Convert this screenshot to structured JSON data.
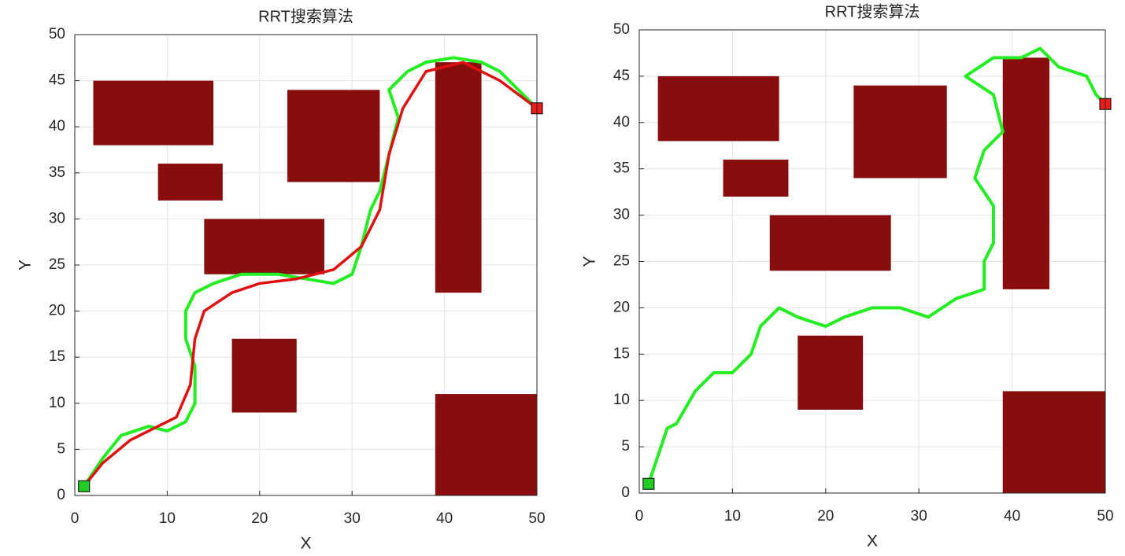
{
  "chart_data": [
    {
      "type": "line",
      "title": "RRT搜索算法",
      "xlabel": "X",
      "ylabel": "Y",
      "xlim": [
        0,
        50
      ],
      "ylim": [
        0,
        50
      ],
      "xticks": [
        0,
        10,
        20,
        30,
        40,
        50
      ],
      "yticks": [
        0,
        5,
        10,
        15,
        20,
        25,
        30,
        35,
        40,
        45,
        50
      ],
      "grid": true,
      "obstacle_color": "#880e0e",
      "obstacles": [
        {
          "x": 2,
          "y": 38,
          "width": 13,
          "height": 7
        },
        {
          "x": 9,
          "y": 32,
          "width": 7,
          "height": 4
        },
        {
          "x": 14,
          "y": 24,
          "width": 13,
          "height": 6
        },
        {
          "x": 23,
          "y": 34,
          "width": 10,
          "height": 10
        },
        {
          "x": 39,
          "y": 22,
          "width": 5,
          "height": 25
        },
        {
          "x": 17,
          "y": 9,
          "width": 7,
          "height": 8
        },
        {
          "x": 39,
          "y": 0,
          "width": 11,
          "height": 11
        }
      ],
      "series": [
        {
          "color": "#22ee22",
          "x": [
            1,
            3,
            5,
            8,
            10,
            12,
            13,
            13,
            12,
            12,
            13,
            15,
            18,
            22,
            25,
            28,
            30,
            31,
            32,
            33,
            34,
            35,
            34,
            36,
            38,
            41,
            44,
            46,
            48,
            50
          ],
          "values": [
            1,
            4,
            6.5,
            7.5,
            7,
            8,
            10,
            14,
            17,
            20,
            22,
            23,
            24,
            24,
            23.5,
            23,
            24,
            27,
            31,
            33,
            37,
            41,
            44,
            46,
            47,
            47.5,
            47,
            46,
            44,
            42
          ]
        },
        {
          "color": "#e01010",
          "x": [
            1,
            3,
            6,
            9,
            11,
            12.5,
            13,
            14,
            17,
            20,
            24,
            28,
            31,
            33,
            34,
            35.5,
            38,
            42,
            46,
            50
          ],
          "values": [
            1,
            3.5,
            6,
            7.5,
            8.5,
            12,
            17,
            20,
            22,
            23,
            23.5,
            24.5,
            27,
            31,
            37,
            42,
            46,
            47,
            45,
            42
          ]
        }
      ],
      "markers": [
        {
          "x": 1,
          "y": 1,
          "color": "#22cc22"
        },
        {
          "x": 50,
          "y": 42,
          "color": "#ee1c1c"
        }
      ]
    },
    {
      "type": "line",
      "title": "RRT搜索算法",
      "xlabel": "X",
      "ylabel": "Y",
      "xlim": [
        0,
        50
      ],
      "ylim": [
        0,
        50
      ],
      "xticks": [
        0,
        10,
        20,
        30,
        40,
        50
      ],
      "yticks": [
        0,
        5,
        10,
        15,
        20,
        25,
        30,
        35,
        40,
        45,
        50
      ],
      "grid": true,
      "obstacle_color": "#880e0e",
      "obstacles": [
        {
          "x": 2,
          "y": 38,
          "width": 13,
          "height": 7
        },
        {
          "x": 9,
          "y": 32,
          "width": 7,
          "height": 4
        },
        {
          "x": 14,
          "y": 24,
          "width": 13,
          "height": 6
        },
        {
          "x": 23,
          "y": 34,
          "width": 10,
          "height": 10
        },
        {
          "x": 39,
          "y": 22,
          "width": 5,
          "height": 25
        },
        {
          "x": 17,
          "y": 9,
          "width": 7,
          "height": 8
        },
        {
          "x": 39,
          "y": 0,
          "width": 11,
          "height": 11
        }
      ],
      "series": [
        {
          "color": "#22ee22",
          "x": [
            1,
            2,
            3,
            4,
            6,
            8,
            10,
            12,
            13,
            15,
            17,
            20,
            22,
            25,
            28,
            31,
            34,
            37,
            37,
            38,
            38,
            36,
            37,
            39,
            38,
            35,
            38,
            41,
            43,
            45,
            48,
            49,
            50
          ],
          "values": [
            1,
            4,
            7,
            7.5,
            11,
            13,
            13,
            15,
            18,
            20,
            19,
            18,
            19,
            20,
            20,
            19,
            21,
            22,
            25,
            27,
            31,
            34,
            37,
            39,
            43,
            45,
            47,
            47,
            48,
            46,
            45,
            43,
            42
          ]
        }
      ],
      "markers": [
        {
          "x": 1,
          "y": 1,
          "color": "#22cc22"
        },
        {
          "x": 50,
          "y": 42,
          "color": "#ee1c1c"
        }
      ]
    }
  ]
}
